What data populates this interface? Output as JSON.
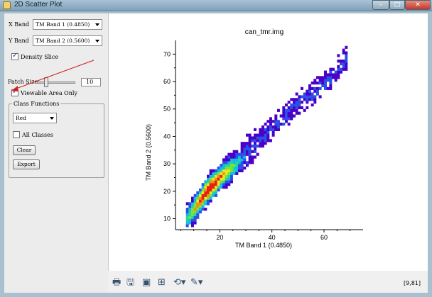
{
  "window": {
    "title": "2D Scatter Plot",
    "min_glyph": "–",
    "max_glyph": "□",
    "close_glyph": "✕"
  },
  "controls": {
    "x_band_label": "X Band",
    "x_band_value": "TM Band 1 (0.4850)",
    "y_band_label": "Y Band",
    "y_band_value": "TM Band 2 (0.5600)",
    "density_slice_label": "Density Slice",
    "density_slice_checked": true,
    "patch_size_label": "Patch Size",
    "patch_size_value": "10",
    "viewable_area_label": "Viewable Area Only",
    "viewable_area_checked": true,
    "class_functions_label": "Class Functions",
    "class_color_value": "Red",
    "all_classes_label": "All Classes",
    "all_classes_checked": false,
    "clear_label": "Clear",
    "export_label": "Export"
  },
  "toolbar": {
    "icons": [
      "printer-icon",
      "save-icon",
      "image-icon",
      "zoom-fit-icon",
      "rotate-icon",
      "edit-pencil-icon"
    ],
    "coord_readout": "[9,81]"
  },
  "colors": {
    "density_scale": [
      "#4b00c8",
      "#2a50e8",
      "#16b8e8",
      "#22d89a",
      "#7ee03a",
      "#e8e820",
      "#f09018",
      "#e82010"
    ],
    "arrow": "#d41c1c"
  },
  "chart_data": {
    "type": "heatmap",
    "title": "can_tmr.img",
    "xlabel": "TM Band 1 (0.4850)",
    "ylabel": "TM Band 2 (0.5600)",
    "xlim": [
      3,
      75
    ],
    "ylim": [
      6,
      75
    ],
    "xticks": [
      20,
      40,
      60
    ],
    "yticks": [
      10,
      20,
      30,
      40,
      50,
      60,
      70
    ],
    "cell_size": 1,
    "density_ridge": {
      "description_points": [
        [
          7,
          9
        ],
        [
          12,
          16
        ],
        [
          16,
          21
        ],
        [
          20,
          25
        ],
        [
          25,
          29
        ],
        [
          30,
          34
        ],
        [
          35,
          38
        ],
        [
          40,
          43
        ],
        [
          45,
          47
        ],
        [
          50,
          52
        ],
        [
          55,
          55
        ],
        [
          62,
          61
        ],
        [
          68,
          68
        ]
      ],
      "peak": [
        14,
        22
      ]
    }
  }
}
